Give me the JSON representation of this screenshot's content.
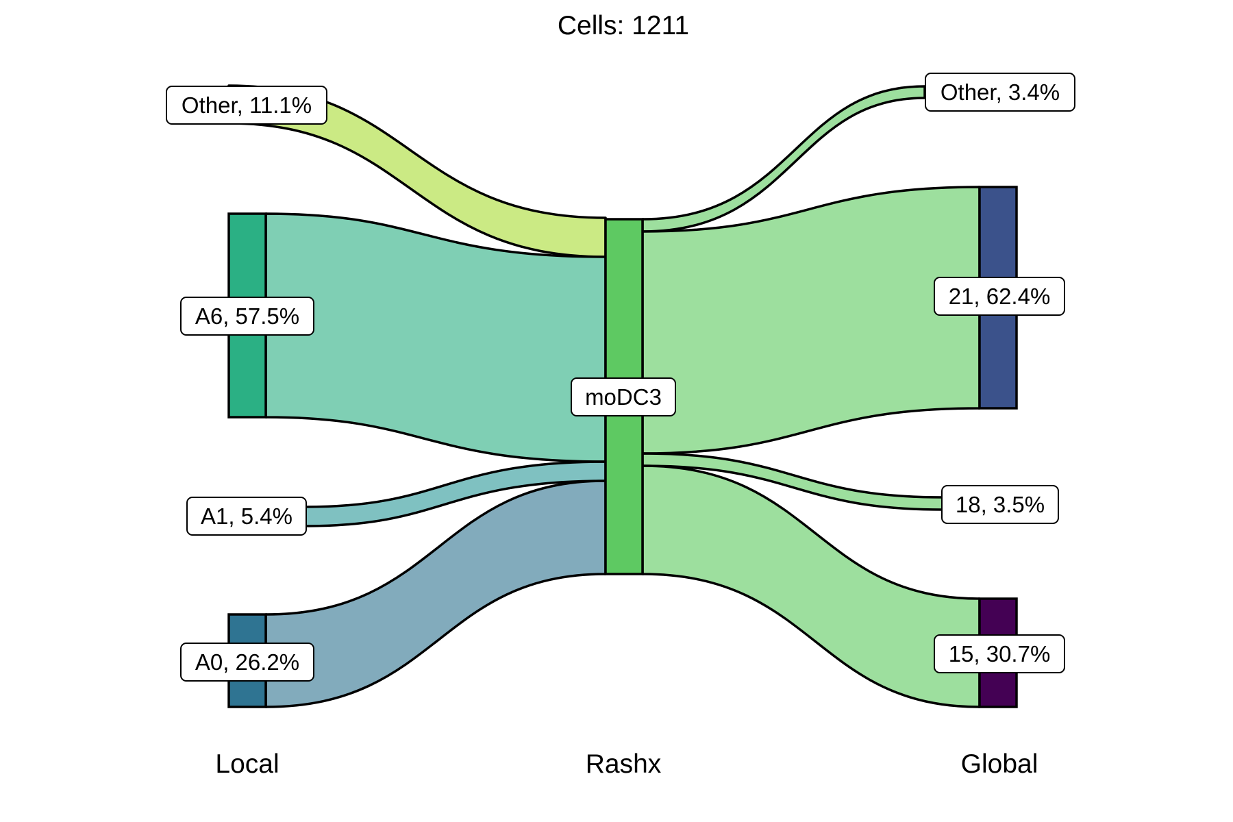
{
  "title": "Cells:  1211",
  "axes": {
    "local": "Local",
    "rashx": "Rashx",
    "global": "Global"
  },
  "nodes": {
    "local_other": {
      "label": "Other, 11.1%",
      "color": "#cbea84"
    },
    "local_a6": {
      "label": "A6, 57.5%",
      "color": "#2bb084"
    },
    "local_a1": {
      "label": "A1, 5.4%",
      "color": "#7fc1c1"
    },
    "local_a0": {
      "label": "A0, 26.2%",
      "color": "#2f7492"
    },
    "rashx_modc3": {
      "label": "moDC3",
      "color": "#5ec962"
    },
    "global_other": {
      "label": "Other, 3.4%",
      "color": "#9ddf9e"
    },
    "global_21": {
      "label": "21, 62.4%",
      "color": "#3b528b"
    },
    "global_18": {
      "label": "18, 3.5%",
      "color": "#9ddf9e"
    },
    "global_15": {
      "label": "15, 30.7%",
      "color": "#440154"
    }
  },
  "flows": {
    "other_to_modc3": {
      "value": 11.1,
      "color": "#cbea84"
    },
    "a6_to_modc3": {
      "value": 57.5,
      "color": "#7fcfb4"
    },
    "a1_to_modc3": {
      "value": 5.4,
      "color": "#7fc1c1"
    },
    "a0_to_modc3": {
      "value": 26.2,
      "color": "#82abbc"
    },
    "modc3_to_other": {
      "value": 3.4,
      "color": "#9ddf9e"
    },
    "modc3_to_21": {
      "value": 62.4,
      "color": "#9ddf9e"
    },
    "modc3_to_18": {
      "value": 3.5,
      "color": "#9ddf9e"
    },
    "modc3_to_15": {
      "value": 30.7,
      "color": "#9ddf9e"
    }
  }
}
